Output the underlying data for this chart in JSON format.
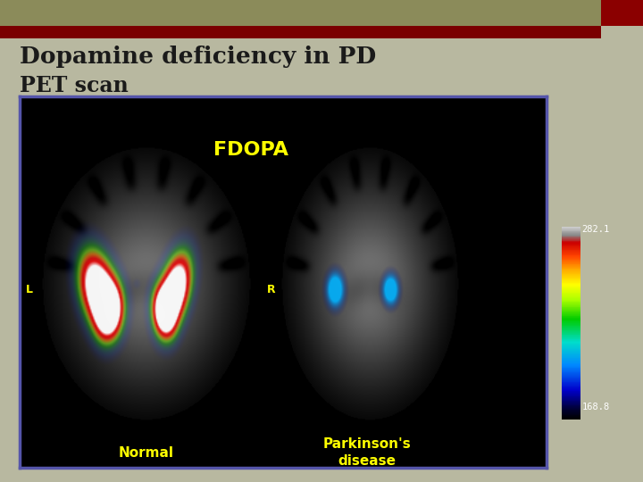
{
  "title_line1": "Dopamine deficiency in PD",
  "title_line2": "PET scan",
  "title_color": "#1a1a1a",
  "header_bar1_color": "#8b8b5a",
  "header_bar2_color": "#7a0000",
  "header_bar_accent_color": "#8b0000",
  "panel_bg": "#000000",
  "panel_border_color": "#5555aa",
  "fdopa_label": "FDOPA",
  "fdopa_color": "#ffff00",
  "normal_label": "Normal",
  "pd_label": "Parkinson's\ndisease",
  "label_color": "#ffff00",
  "L_label": "L",
  "R_label": "R",
  "LR_color": "#ffff00",
  "colorbar_max": "282.1",
  "colorbar_min": "168.8",
  "colorbar_text_color": "#ffffff",
  "bg_color": "#b8b8a0"
}
